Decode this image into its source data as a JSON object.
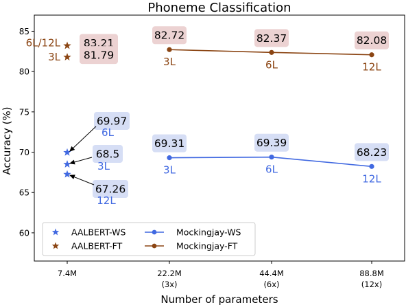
{
  "chart_data": {
    "type": "scatter",
    "title": "Phoneme Classification",
    "xlabel": "Number of parameters",
    "ylabel": "Accuracy (%)",
    "ylim": [
      56.5,
      87
    ],
    "yticks": [
      60,
      65,
      70,
      75,
      80,
      85
    ],
    "categories": [
      {
        "line1": "7.4M",
        "line2": ""
      },
      {
        "line1": "22.2M",
        "line2": "(3x)"
      },
      {
        "line1": "44.4M",
        "line2": "(6x)"
      },
      {
        "line1": "88.8M",
        "line2": "(12x)"
      }
    ],
    "grid": false,
    "legend_position": "lower-left",
    "series": [
      {
        "name": "AALBERT-WS",
        "marker": "star",
        "line": false,
        "color": "#4169e1",
        "label_bg": "#d6def5",
        "points": [
          {
            "x": 0,
            "y": 69.97,
            "value_label": "69.97",
            "layer_label": "6L"
          },
          {
            "x": 0,
            "y": 68.5,
            "value_label": "68.5",
            "layer_label": "3L"
          },
          {
            "x": 0,
            "y": 67.26,
            "value_label": "67.26",
            "layer_label": "12L"
          }
        ]
      },
      {
        "name": "AALBERT-FT",
        "marker": "star",
        "line": false,
        "color": "#8b4513",
        "label_bg": "#ecd2d2",
        "points": [
          {
            "x": 0,
            "y": 83.21,
            "value_label": "83.21",
            "layer_label": "6L/12L"
          },
          {
            "x": 0,
            "y": 81.79,
            "value_label": "81.79",
            "layer_label": "3L"
          }
        ]
      },
      {
        "name": "Mockingjay-WS",
        "marker": "circle",
        "line": true,
        "color": "#4169e1",
        "label_bg": "#d6def5",
        "points": [
          {
            "x": 1,
            "y": 69.31,
            "value_label": "69.31",
            "layer_label": "3L"
          },
          {
            "x": 2,
            "y": 69.39,
            "value_label": "69.39",
            "layer_label": "6L"
          },
          {
            "x": 3,
            "y": 68.23,
            "value_label": "68.23",
            "layer_label": "12L"
          }
        ]
      },
      {
        "name": "Mockingjay-FT",
        "marker": "circle",
        "line": true,
        "color": "#8b4513",
        "label_bg": "#ecd2d2",
        "points": [
          {
            "x": 1,
            "y": 82.72,
            "value_label": "82.72",
            "layer_label": "3L"
          },
          {
            "x": 2,
            "y": 82.37,
            "value_label": "82.37",
            "layer_label": "6L"
          },
          {
            "x": 3,
            "y": 82.08,
            "value_label": "82.08",
            "layer_label": "12L"
          }
        ]
      }
    ]
  }
}
